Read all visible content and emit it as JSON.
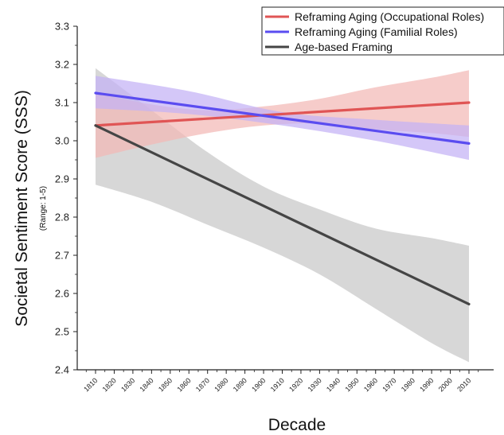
{
  "chart_data": {
    "type": "line",
    "title": "",
    "xlabel": "Decade",
    "ylabel": "Societal Sentiment Score (SSS)",
    "ylabel_sub": "(Range: 1-5)",
    "x": [
      1810,
      1820,
      1830,
      1840,
      1850,
      1860,
      1870,
      1880,
      1890,
      1900,
      1910,
      1920,
      1930,
      1940,
      1950,
      1960,
      1970,
      1980,
      1990,
      2000,
      2010
    ],
    "xlim": [
      1800,
      2020
    ],
    "ylim": [
      2.4,
      3.3
    ],
    "yticks": [
      "2.4",
      "2.5",
      "2.6",
      "2.7",
      "2.8",
      "2.9",
      "3.0",
      "3.1",
      "3.2",
      "3.3"
    ],
    "legend_position": "top-right",
    "grid": false,
    "series": [
      {
        "name": "Reframing Aging (Occupational Roles)",
        "color": "#e05555",
        "band_color": "#f2b9b6",
        "x": [
          1810,
          2010
        ],
        "values": [
          3.04,
          3.1
        ],
        "ci_x": [
          1810,
          1840,
          1870,
          1900,
          1930,
          1960,
          1990,
          2010
        ],
        "ci_lower": [
          2.955,
          2.99,
          3.02,
          3.04,
          3.045,
          3.03,
          3.02,
          3.01
        ],
        "ci_upper": [
          3.125,
          3.095,
          3.08,
          3.09,
          3.11,
          3.14,
          3.165,
          3.185
        ]
      },
      {
        "name": "Reframing Aging (Familial Roles)",
        "color": "#5a4cf0",
        "band_color": "#c4b2f5",
        "x": [
          1810,
          2010
        ],
        "values": [
          3.125,
          2.993
        ],
        "ci_x": [
          1810,
          1860,
          1910,
          1960,
          2010
        ],
        "ci_lower": [
          3.085,
          3.07,
          3.04,
          3.0,
          2.95
        ],
        "ci_upper": [
          3.17,
          3.13,
          3.075,
          3.055,
          3.04
        ]
      },
      {
        "name": "Age-based Framing",
        "color": "#454545",
        "band_color": "#c8c8c8",
        "x": [
          1810,
          2010
        ],
        "values": [
          3.04,
          2.572
        ],
        "ci_x": [
          1810,
          1840,
          1870,
          1900,
          1930,
          1960,
          1990,
          2010
        ],
        "ci_lower": [
          2.885,
          2.84,
          2.78,
          2.72,
          2.65,
          2.56,
          2.47,
          2.42
        ],
        "ci_upper": [
          3.19,
          3.08,
          2.97,
          2.88,
          2.82,
          2.77,
          2.745,
          2.725
        ]
      }
    ]
  }
}
